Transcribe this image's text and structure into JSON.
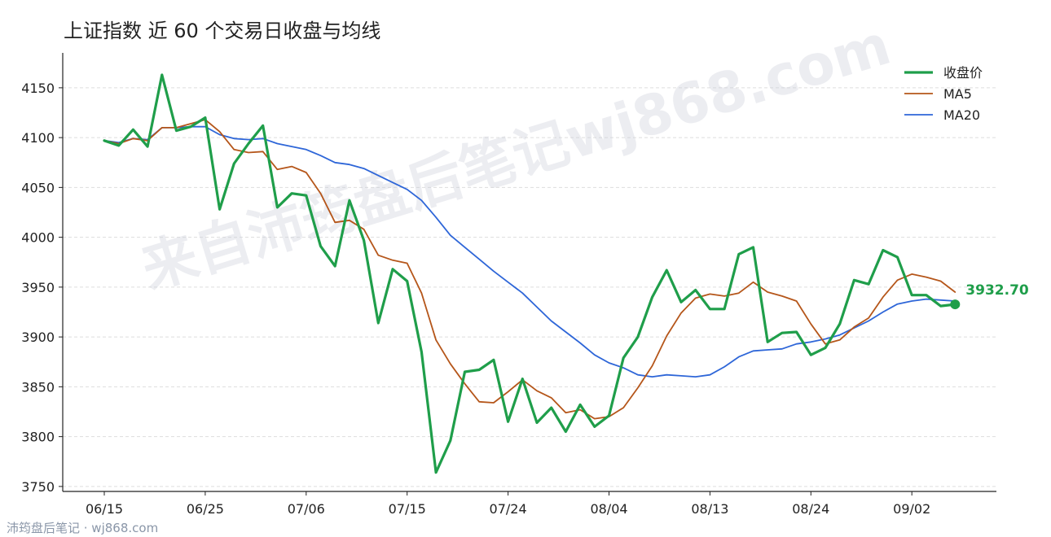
{
  "title": "上证指数 近 60 个交易日收盘与均线",
  "watermark": "来自沛筠盘后笔记wj868.com",
  "footer": "沛筠盘后笔记 · wj868.com",
  "last_value_label": "3932.70",
  "colors": {
    "close": "#1f9e4a",
    "ma5": "#b5561a",
    "ma20": "#2e66d8",
    "grid": "#dddddd",
    "axis": "#222222",
    "watermark": "#c8ccd6",
    "footer": "#8a96a8"
  },
  "chart_data": {
    "type": "line",
    "title": "上证指数 近 60 个交易日收盘与均线",
    "xlabel": "",
    "ylabel": "",
    "ylim": [
      3745,
      4185
    ],
    "yticks": [
      3750,
      3800,
      3850,
      3900,
      3950,
      4000,
      4050,
      4100,
      4150
    ],
    "xticks": [
      {
        "label": "06/15",
        "index": 0
      },
      {
        "label": "06/25",
        "index": 7
      },
      {
        "label": "07/06",
        "index": 14
      },
      {
        "label": "07/15",
        "index": 21
      },
      {
        "label": "07/24",
        "index": 28
      },
      {
        "label": "08/04",
        "index": 35
      },
      {
        "label": "08/13",
        "index": 42
      },
      {
        "label": "08/24",
        "index": 49
      },
      {
        "label": "09/02",
        "index": 56
      }
    ],
    "grid": "horizontal dashed",
    "legend": "top-right",
    "series": [
      {
        "name": "收盘价",
        "color": "#1f9e4a",
        "width": 3.2,
        "values": [
          4097,
          4092,
          4108,
          4091,
          4163,
          4107,
          4111,
          4120,
          4028,
          4074,
          4094,
          4112,
          4030,
          4044,
          4042,
          3991,
          3971,
          4037,
          3997,
          3914,
          3968,
          3956,
          3885,
          3764,
          3796,
          3865,
          3867,
          3877,
          3815,
          3858,
          3814,
          3829,
          3805,
          3832,
          3810,
          3821,
          3879,
          3900,
          3940,
          3967,
          3935,
          3947,
          3928,
          3928,
          3983,
          3990,
          3895,
          3904,
          3905,
          3882,
          3889,
          3913,
          3957,
          3953,
          3987,
          3980,
          3942,
          3942,
          3931,
          3932.7
        ]
      },
      {
        "name": "MA5",
        "color": "#b5561a",
        "width": 1.8,
        "values": [
          4097,
          4094,
          4099,
          4097,
          4110,
          4110,
          4114,
          4118,
          4106,
          4088,
          4085,
          4086,
          4068,
          4071,
          4065,
          4044,
          4015,
          4017,
          4008,
          3982,
          3977,
          3974,
          3944,
          3897,
          3873,
          3853,
          3835,
          3834,
          3845,
          3857,
          3846,
          3839,
          3824,
          3827,
          3818,
          3820,
          3829,
          3849,
          3871,
          3901,
          3924,
          3939,
          3943,
          3941,
          3944,
          3955,
          3945,
          3941,
          3936,
          3913,
          3893,
          3897,
          3910,
          3919,
          3940,
          3957,
          3963,
          3960,
          3956,
          3945
        ]
      },
      {
        "name": "MA20",
        "color": "#2e66d8",
        "width": 1.8,
        "values": [
          4097,
          4095,
          4099,
          4098,
          4110,
          4110,
          4111,
          4111,
          4103,
          4099,
          4098,
          4099,
          4094,
          4091,
          4088,
          4082,
          4075,
          4073,
          4069,
          4062,
          4055,
          4048,
          4037,
          4020,
          4002,
          3990,
          3978,
          3966,
          3955,
          3944,
          3930,
          3916,
          3905,
          3894,
          3882,
          3874,
          3869,
          3862,
          3860,
          3862,
          3861,
          3860,
          3862,
          3870,
          3880,
          3886,
          3887,
          3888,
          3893,
          3895,
          3898,
          3902,
          3909,
          3916,
          3925,
          3933,
          3936,
          3938,
          3937,
          3936
        ]
      }
    ]
  }
}
